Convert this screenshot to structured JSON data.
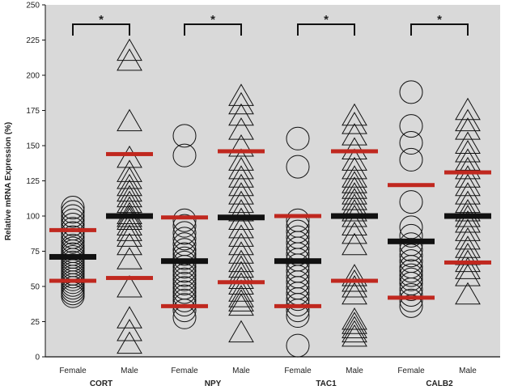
{
  "chart_data": {
    "type": "scatter",
    "ylabel": "Relative mRNA Expression (%)",
    "ylim": [
      0,
      250
    ],
    "yticks": [
      0,
      25,
      50,
      75,
      100,
      125,
      150,
      175,
      200,
      225,
      250
    ],
    "grid": false,
    "background_color": "#d9d9d9",
    "mean_color": "#111111",
    "sd_color": "#c0281f",
    "significance_marker": "*",
    "groups": [
      {
        "gene": "CORT",
        "female": {
          "label": "Female",
          "marker": "circle",
          "mean": 71,
          "sd_low": 54,
          "sd_high": 90,
          "values": [
            43,
            45,
            47,
            49,
            51,
            53,
            55,
            57,
            59,
            61,
            63,
            65,
            67,
            69,
            71,
            73,
            75,
            77,
            79,
            82,
            85,
            88,
            91,
            94,
            97,
            100,
            103,
            106
          ]
        },
        "male": {
          "label": "Male",
          "marker": "triangle",
          "mean": 100,
          "sd_low": 56,
          "sd_high": 144,
          "values": [
            10,
            19,
            28,
            50,
            70,
            80,
            86,
            90,
            94,
            98,
            100,
            102,
            106,
            110,
            114,
            118,
            122,
            127,
            132,
            142,
            168,
            211,
            218
          ]
        }
      },
      {
        "gene": "NPY",
        "female": {
          "label": "Female",
          "marker": "circle",
          "mean": 68,
          "sd_low": 36,
          "sd_high": 99,
          "values": [
            28,
            33,
            37,
            40,
            43,
            46,
            49,
            52,
            55,
            58,
            61,
            64,
            67,
            70,
            73,
            76,
            80,
            84,
            88,
            93,
            97,
            143,
            157
          ]
        },
        "male": {
          "label": "Male",
          "marker": "triangle",
          "mean": 99,
          "sd_low": 53,
          "sd_high": 146,
          "values": [
            18,
            37,
            40,
            43,
            47,
            52,
            56,
            60,
            64,
            68,
            74,
            80,
            86,
            92,
            98,
            104,
            110,
            116,
            122,
            128,
            134,
            140,
            150,
            162,
            172,
            180,
            186
          ]
        }
      },
      {
        "gene": "TAC1",
        "female": {
          "label": "Female",
          "marker": "circle",
          "mean": 68,
          "sd_low": 36,
          "sd_high": 100,
          "values": [
            8,
            29,
            33,
            37,
            41,
            45,
            49,
            53,
            57,
            61,
            65,
            69,
            73,
            77,
            81,
            85,
            89,
            93,
            97,
            135,
            155
          ]
        },
        "male": {
          "label": "Male",
          "marker": "triangle",
          "mean": 100,
          "sd_low": 54,
          "sd_high": 146,
          "values": [
            15,
            18,
            21,
            24,
            27,
            45,
            50,
            54,
            58,
            80,
            88,
            94,
            100,
            104,
            108,
            112,
            116,
            120,
            124,
            128,
            134,
            140,
            148,
            158,
            166,
            172
          ]
        }
      },
      {
        "gene": "CALB2",
        "female": {
          "label": "Female",
          "marker": "circle",
          "mean": 82,
          "sd_low": 42,
          "sd_high": 122,
          "values": [
            36,
            40,
            44,
            48,
            52,
            55,
            58,
            61,
            64,
            68,
            72,
            76,
            80,
            86,
            92,
            110,
            140,
            152,
            164,
            188
          ]
        },
        "male": {
          "label": "Male",
          "marker": "triangle",
          "mean": 100,
          "sd_low": 67,
          "sd_high": 131,
          "values": [
            45,
            58,
            63,
            68,
            73,
            78,
            84,
            90,
            96,
            100,
            104,
            110,
            116,
            122,
            128,
            134,
            140,
            146,
            152,
            162,
            168,
            176
          ]
        }
      }
    ]
  }
}
